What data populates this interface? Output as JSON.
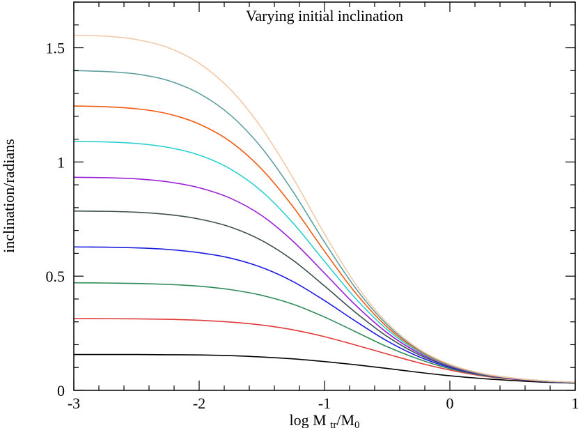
{
  "chart_data": {
    "type": "line",
    "title": "Varying initial inclination",
    "xlabel": "log M_tr/M_0",
    "ylabel": "inclination/radians",
    "xlim": [
      -3,
      1
    ],
    "ylim": [
      0,
      1.7
    ],
    "grid": false,
    "legend": "none",
    "x_ticks": [
      {
        "value": -3,
        "label": "-3"
      },
      {
        "value": -2,
        "label": "-2"
      },
      {
        "value": -1,
        "label": "-1"
      },
      {
        "value": 0,
        "label": "0"
      },
      {
        "value": 1,
        "label": "1"
      }
    ],
    "y_ticks": [
      {
        "value": 0,
        "label": "0"
      },
      {
        "value": 0.5,
        "label": "0.5"
      },
      {
        "value": 1,
        "label": "1"
      },
      {
        "value": 1.5,
        "label": "1.5"
      }
    ],
    "x": [
      -3.0,
      -2.75,
      -2.5,
      -2.25,
      -2.0,
      -1.75,
      -1.5,
      -1.25,
      -1.0,
      -0.75,
      -0.5,
      -0.25,
      0.0,
      0.25,
      0.5,
      0.75,
      1.0
    ],
    "series": [
      {
        "color": "#000000",
        "values": [
          0.157,
          0.157,
          0.157,
          0.156,
          0.155,
          0.152,
          0.146,
          0.138,
          0.126,
          0.112,
          0.096,
          0.079,
          0.064,
          0.052,
          0.043,
          0.036,
          0.032
        ]
      },
      {
        "color": "#e03a3a",
        "values": [
          0.314,
          0.314,
          0.313,
          0.311,
          0.307,
          0.299,
          0.286,
          0.265,
          0.235,
          0.198,
          0.159,
          0.121,
          0.089,
          0.064,
          0.049,
          0.039,
          0.034
        ]
      },
      {
        "color": "#2e8b57",
        "values": [
          0.471,
          0.47,
          0.468,
          0.464,
          0.456,
          0.441,
          0.416,
          0.377,
          0.321,
          0.256,
          0.191,
          0.137,
          0.095,
          0.067,
          0.05,
          0.04,
          0.034
        ]
      },
      {
        "color": "#1c1ce0",
        "values": [
          0.628,
          0.627,
          0.624,
          0.617,
          0.603,
          0.579,
          0.538,
          0.476,
          0.393,
          0.302,
          0.216,
          0.148,
          0.1,
          0.069,
          0.051,
          0.04,
          0.034
        ]
      },
      {
        "color": "#3d4f4f",
        "values": [
          0.785,
          0.784,
          0.78,
          0.77,
          0.75,
          0.715,
          0.656,
          0.569,
          0.457,
          0.34,
          0.236,
          0.157,
          0.104,
          0.07,
          0.052,
          0.041,
          0.035
        ]
      },
      {
        "color": "#9b1fd6",
        "values": [
          0.933,
          0.931,
          0.926,
          0.913,
          0.887,
          0.841,
          0.765,
          0.652,
          0.513,
          0.372,
          0.252,
          0.164,
          0.107,
          0.072,
          0.052,
          0.041,
          0.035
        ]
      },
      {
        "color": "#2ecfcf",
        "values": [
          1.09,
          1.088,
          1.081,
          1.064,
          1.03,
          0.969,
          0.871,
          0.732,
          0.565,
          0.401,
          0.266,
          0.17,
          0.109,
          0.073,
          0.053,
          0.041,
          0.035
        ]
      },
      {
        "color": "#f05a10",
        "values": [
          1.245,
          1.242,
          1.233,
          1.211,
          1.166,
          1.089,
          0.968,
          0.803,
          0.609,
          0.425,
          0.277,
          0.175,
          0.111,
          0.074,
          0.053,
          0.042,
          0.035
        ]
      },
      {
        "color": "#5f9ea0",
        "values": [
          1.4,
          1.396,
          1.385,
          1.357,
          1.3,
          1.205,
          1.061,
          0.869,
          0.649,
          0.446,
          0.287,
          0.179,
          0.113,
          0.075,
          0.054,
          0.042,
          0.035
        ]
      },
      {
        "color": "#f2c9a6",
        "values": [
          1.555,
          1.551,
          1.536,
          1.501,
          1.432,
          1.317,
          1.147,
          0.929,
          0.685,
          0.464,
          0.295,
          0.182,
          0.114,
          0.075,
          0.054,
          0.042,
          0.036
        ]
      }
    ]
  }
}
